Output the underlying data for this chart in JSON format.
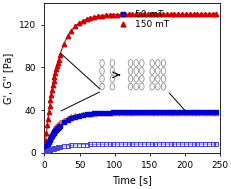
{
  "xlabel": "Time [s]",
  "ylabel": "G', G'' [Pa]",
  "xlim": [
    0,
    250
  ],
  "ylim": [
    0,
    140
  ],
  "yticks": [
    0,
    40,
    80,
    120
  ],
  "xticks": [
    0,
    50,
    100,
    150,
    200,
    250
  ],
  "red_filled": "#cc0000",
  "red_open": "#dd4444",
  "blue_filled": "#0000cc",
  "blue_open": "#4444cc",
  "bg_color": "#ffffff",
  "figsize": [
    2.32,
    1.89
  ],
  "dpi": 100,
  "G_prime_150_sat": 130,
  "G_prime_150_tau": 18,
  "G_dbl_150_sat": 37,
  "G_dbl_150_tau": 15,
  "G_prime_50_sat": 38,
  "G_prime_50_tau": 20,
  "G_dbl_50_sat": 8,
  "G_dbl_50_tau": 20
}
